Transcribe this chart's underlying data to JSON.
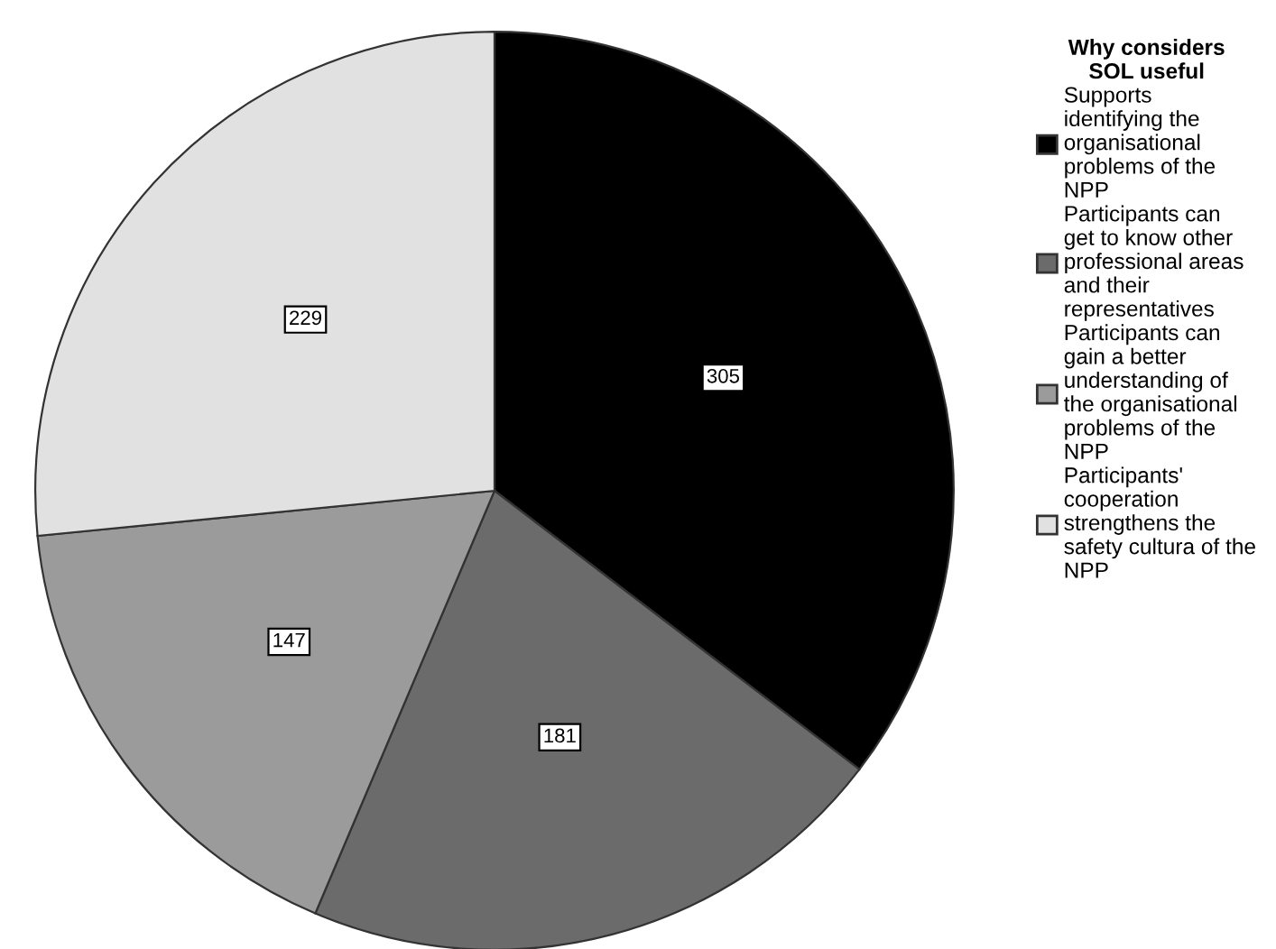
{
  "chart_data": {
    "type": "pie",
    "legend_title": "Why considers\nSOL useful",
    "legend": "right",
    "data_labels": true,
    "categories": [
      "Supports\nidentifying the\norganisational\nproblems of the\nNPP",
      "Participants can\nget to know other\nprofessional areas\nand their\nrepresentatives",
      "Participants can\ngain a better\nunderstanding of\nthe organisational\nproblems of the\nNPP",
      "Participants'\ncooperation\nstrengthens the\nsafety cultura of the\nNPP"
    ],
    "values": [
      305,
      181,
      147,
      229
    ],
    "colors": [
      "#000000",
      "#6b6b6b",
      "#9b9b9b",
      "#e1e1e1"
    ]
  }
}
